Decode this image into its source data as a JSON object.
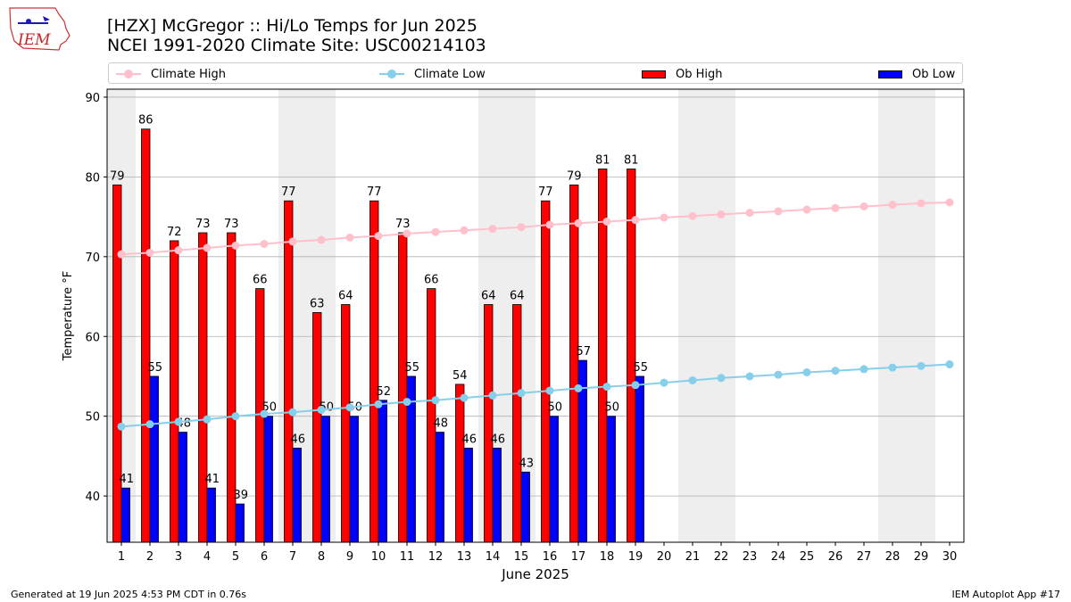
{
  "header": {
    "title_line1": "[HZX] McGregor :: Hi/Lo Temps for Jun 2025",
    "title_line2": "NCEI 1991-2020 Climate Site: USC00214103"
  },
  "logo": {
    "text": "IEM"
  },
  "footer": {
    "left": "Generated at 19 Jun 2025 4:53 PM CDT in 0.76s",
    "right": "IEM Autoplot App #17"
  },
  "legend": {
    "climate_high": "Climate High",
    "climate_low": "Climate Low",
    "ob_high": "Ob High",
    "ob_low": "Ob Low"
  },
  "colors": {
    "ob_high": "#ff0000",
    "ob_low": "#0000ff",
    "climate_high": "#ffc0cb",
    "climate_low": "#87ceeb",
    "weekend_shade": "#eeeeee",
    "grid": "#b0b0b0"
  },
  "chart_data": {
    "type": "bar",
    "xlabel": "June 2025",
    "ylabel": "Temperature °F",
    "ylim": [
      34.2,
      91
    ],
    "yticks": [
      40,
      50,
      60,
      70,
      80,
      90
    ],
    "grid": true,
    "legend_position": "top",
    "days": [
      1,
      2,
      3,
      4,
      5,
      6,
      7,
      8,
      9,
      10,
      11,
      12,
      13,
      14,
      15,
      16,
      17,
      18,
      19,
      20,
      21,
      22,
      23,
      24,
      25,
      26,
      27,
      28,
      29,
      30
    ],
    "shaded_days": [
      [
        1,
        1
      ],
      [
        7,
        8
      ],
      [
        14,
        15
      ],
      [
        21,
        22
      ],
      [
        28,
        29
      ]
    ],
    "series": [
      {
        "name": "Ob High",
        "kind": "bar",
        "values": [
          79,
          86,
          72,
          73,
          73,
          66,
          77,
          63,
          64,
          77,
          73,
          66,
          54,
          64,
          64,
          77,
          79,
          81,
          81
        ]
      },
      {
        "name": "Ob Low",
        "kind": "bar",
        "values": [
          41,
          55,
          48,
          41,
          39,
          50,
          46,
          50,
          50,
          52,
          55,
          48,
          46,
          46,
          43,
          50,
          57,
          50,
          55
        ]
      },
      {
        "name": "Climate High",
        "kind": "line",
        "values": [
          70.3,
          70.5,
          70.8,
          71.1,
          71.4,
          71.6,
          71.9,
          72.1,
          72.4,
          72.6,
          72.9,
          73.1,
          73.3,
          73.5,
          73.7,
          74.0,
          74.2,
          74.4,
          74.6,
          74.9,
          75.1,
          75.3,
          75.5,
          75.7,
          75.9,
          76.1,
          76.3,
          76.5,
          76.7,
          76.8
        ]
      },
      {
        "name": "Climate Low",
        "kind": "line",
        "values": [
          48.7,
          49.0,
          49.3,
          49.6,
          50.0,
          50.3,
          50.5,
          50.8,
          51.1,
          51.5,
          51.8,
          52.0,
          52.3,
          52.6,
          52.9,
          53.2,
          53.5,
          53.7,
          53.9,
          54.2,
          54.5,
          54.8,
          55.0,
          55.2,
          55.5,
          55.7,
          55.9,
          56.1,
          56.3,
          56.5
        ]
      }
    ]
  }
}
